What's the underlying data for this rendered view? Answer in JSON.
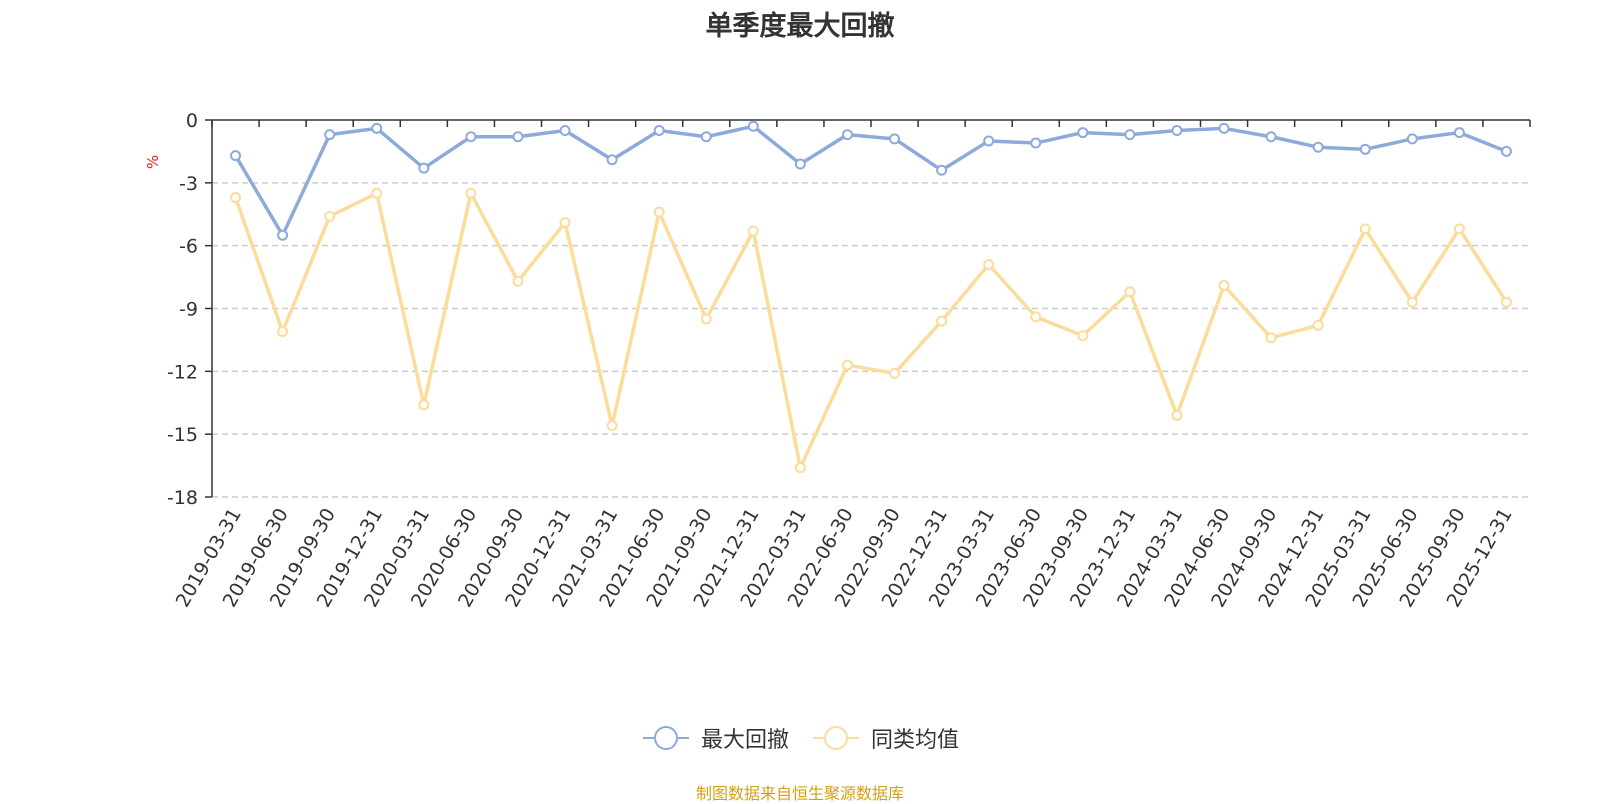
{
  "chart_data": {
    "type": "line",
    "title": "单季度最大回撤",
    "ylabel": "%",
    "ylim": [
      -18,
      0
    ],
    "yticks": [
      0,
      -3,
      -6,
      -9,
      -12,
      -15,
      -18
    ],
    "grid": true,
    "legend_position": "bottom-center",
    "categories": [
      "2019-03-31",
      "2019-06-30",
      "2019-09-30",
      "2019-12-31",
      "2020-03-31",
      "2020-06-30",
      "2020-09-30",
      "2020-12-31",
      "2021-03-31",
      "2021-06-30",
      "2021-09-30",
      "2021-12-31",
      "2022-03-31",
      "2022-06-30",
      "2022-09-30",
      "2022-12-31",
      "2023-03-31",
      "2023-06-30",
      "2023-09-30",
      "2023-12-31",
      "2024-03-31",
      "2024-06-30",
      "2024-09-30",
      "2024-12-31",
      "2025-03-31",
      "2025-06-30",
      "2025-09-30",
      "2025-12-31"
    ],
    "series": [
      {
        "name": "最大回撤",
        "color": "#8eaadb",
        "values": [
          -1.7,
          -5.5,
          -0.7,
          -0.4,
          -2.3,
          -0.8,
          -0.8,
          -0.5,
          -1.9,
          -0.5,
          -0.8,
          -0.3,
          -2.1,
          -0.7,
          -0.9,
          -2.4,
          -1.0,
          -1.1,
          -0.6,
          -0.7,
          -0.5,
          -0.4,
          -0.8,
          -1.3,
          -1.4,
          -0.9,
          -0.6,
          -1.5
        ]
      },
      {
        "name": "同类均值",
        "color": "#fbdc9a",
        "values": [
          -3.7,
          -10.1,
          -4.6,
          -3.5,
          -13.6,
          -3.5,
          -7.7,
          -4.9,
          -14.6,
          -4.4,
          -9.5,
          -5.3,
          -16.6,
          -11.7,
          -12.1,
          -9.6,
          -6.9,
          -9.4,
          -10.3,
          -8.2,
          -14.1,
          -7.9,
          -10.4,
          -9.8,
          -5.2,
          -8.7,
          -5.2,
          -8.7
        ]
      }
    ]
  },
  "source_note": "制图数据来自恒生聚源数据库"
}
